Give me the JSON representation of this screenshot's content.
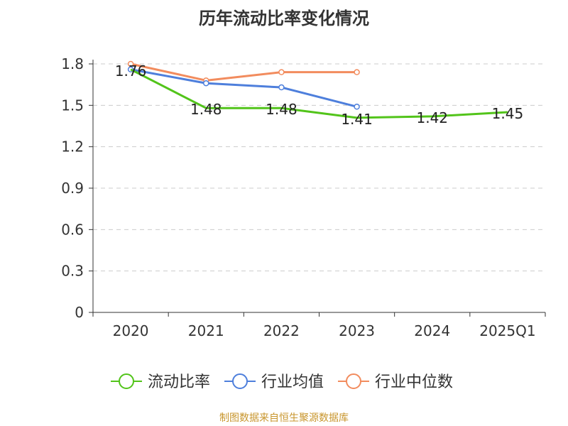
{
  "chart_data": {
    "type": "line",
    "title": "历年流动比率变化情况",
    "categories": [
      "2020",
      "2021",
      "2022",
      "2023",
      "2024",
      "2025Q1"
    ],
    "ylim": [
      0,
      1.8
    ],
    "yticks": [
      "0",
      "0.3",
      "0.6",
      "0.9",
      "1.2",
      "1.5",
      "1.8"
    ],
    "grid": true,
    "legend_position": "bottom",
    "series": [
      {
        "name": "流动比率",
        "color": "#52c41a",
        "values": [
          1.76,
          1.48,
          1.48,
          1.41,
          1.42,
          1.45
        ],
        "labels": [
          "1.76",
          "1.48",
          "1.48",
          "1.41",
          "1.42",
          "1.45"
        ],
        "markers": false
      },
      {
        "name": "行业均值",
        "color": "#4e7fdc",
        "values": [
          1.76,
          1.66,
          1.63,
          1.49,
          null,
          null
        ],
        "markers": true
      },
      {
        "name": "行业中位数",
        "color": "#f28c5e",
        "values": [
          1.8,
          1.68,
          1.74,
          1.74,
          null,
          null
        ],
        "markers": true
      }
    ]
  },
  "footer": {
    "source": "制图数据来自恒生聚源数据库",
    "source_color": "#c8962e"
  }
}
